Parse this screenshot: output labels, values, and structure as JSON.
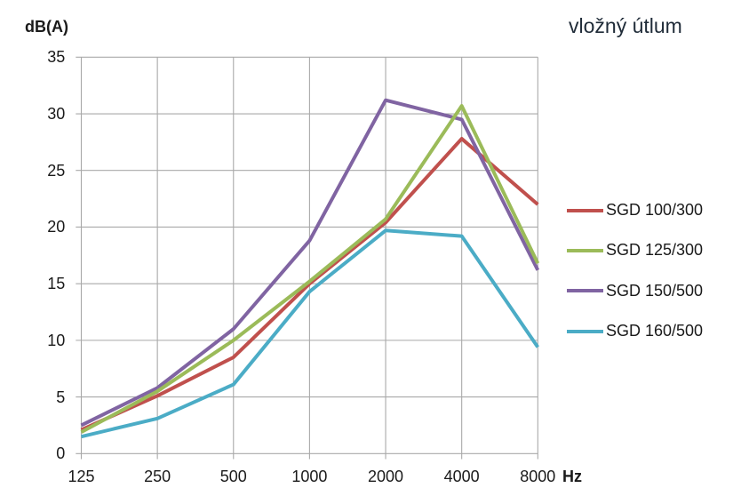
{
  "chart_data": {
    "type": "line",
    "title": "vložný útlum",
    "y_axis_label": "dB(A)",
    "x_axis_label": "Hz",
    "categories": [
      "125",
      "250",
      "500",
      "1000",
      "2000",
      "4000",
      "8000"
    ],
    "y_ticks": [
      0,
      5,
      10,
      15,
      20,
      25,
      30,
      35
    ],
    "ylim": [
      0,
      35
    ],
    "grid": true,
    "legend_position": "right",
    "series": [
      {
        "name": "SGD 100/300",
        "color": "#C0504D",
        "values": [
          2.1,
          5.1,
          8.5,
          15.0,
          20.4,
          27.8,
          22.0
        ]
      },
      {
        "name": "SGD 125/300",
        "color": "#9BBB59",
        "values": [
          1.9,
          5.5,
          10.0,
          15.2,
          20.7,
          30.7,
          16.8
        ]
      },
      {
        "name": "SGD 150/500",
        "color": "#8064A2",
        "values": [
          2.5,
          5.8,
          11.0,
          18.8,
          31.2,
          29.5,
          16.2
        ]
      },
      {
        "name": "SGD 160/500",
        "color": "#4BACC6",
        "values": [
          1.5,
          3.1,
          6.1,
          14.3,
          19.7,
          19.2,
          9.4
        ]
      }
    ]
  }
}
